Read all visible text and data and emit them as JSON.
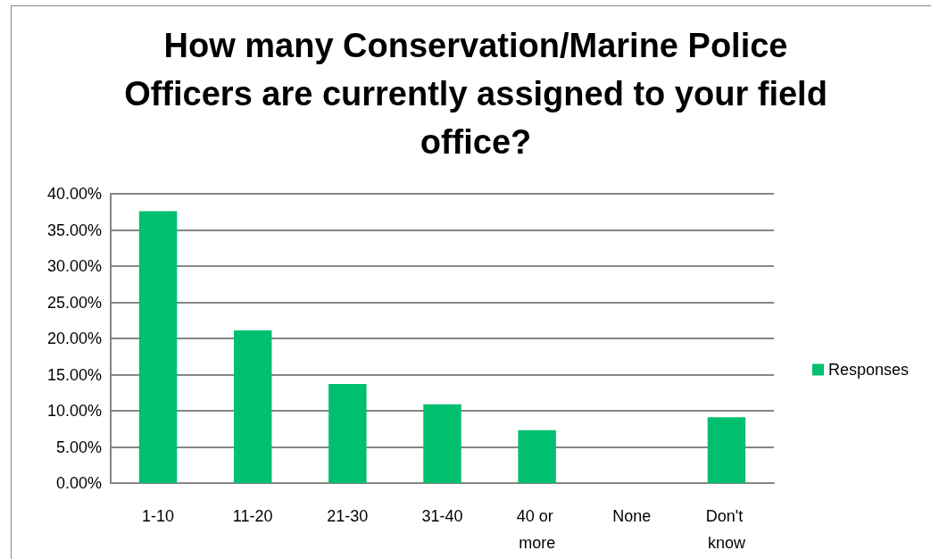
{
  "chart_data": {
    "type": "bar",
    "title": "How many Conservation/Marine Police Officers are currently assigned to your field office?",
    "categories": [
      "1-10",
      "11-20",
      "21-30",
      "31-40",
      "40 or more",
      "None",
      "Don't know"
    ],
    "series": [
      {
        "name": "Responses",
        "color": "#00bf6f",
        "values": [
          37.6,
          21.1,
          13.7,
          10.9,
          7.3,
          0,
          9.1
        ]
      }
    ],
    "ylim": [
      0,
      40
    ],
    "yticks": [
      {
        "value": 0,
        "label": "0.00%"
      },
      {
        "value": 5,
        "label": "5.00%"
      },
      {
        "value": 10,
        "label": "10.00%"
      },
      {
        "value": 15,
        "label": "15.00%"
      },
      {
        "value": 20,
        "label": "20.00%"
      },
      {
        "value": 25,
        "label": "25.00%"
      },
      {
        "value": 30,
        "label": "30.00%"
      },
      {
        "value": 35,
        "label": "35.00%"
      },
      {
        "value": 40,
        "label": "40.00%"
      }
    ],
    "grid": "y",
    "legend": "right"
  }
}
